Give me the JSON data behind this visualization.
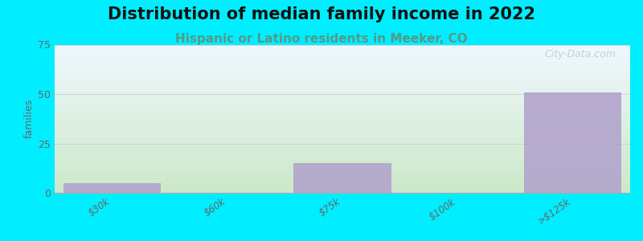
{
  "title": "Distribution of median family income in 2022",
  "subtitle": "Hispanic or Latino residents in Meeker, CO",
  "categories": [
    "$30k",
    "$60k",
    "$75k",
    "$100k",
    ">$125k"
  ],
  "values": [
    5,
    0,
    15,
    0,
    51
  ],
  "bar_color": "#b0a0cc",
  "bar_alpha": 0.85,
  "ylabel": "families",
  "ylim": [
    0,
    75
  ],
  "yticks": [
    0,
    25,
    50,
    75
  ],
  "background_outer": "#00eeff",
  "background_chart_top": "#f0f8ff",
  "background_chart_bottom": "#cce8c8",
  "grid_color": "#cccccc",
  "title_fontsize": 15,
  "subtitle_fontsize": 11,
  "subtitle_color": "#559988",
  "watermark": "City-Data.com"
}
